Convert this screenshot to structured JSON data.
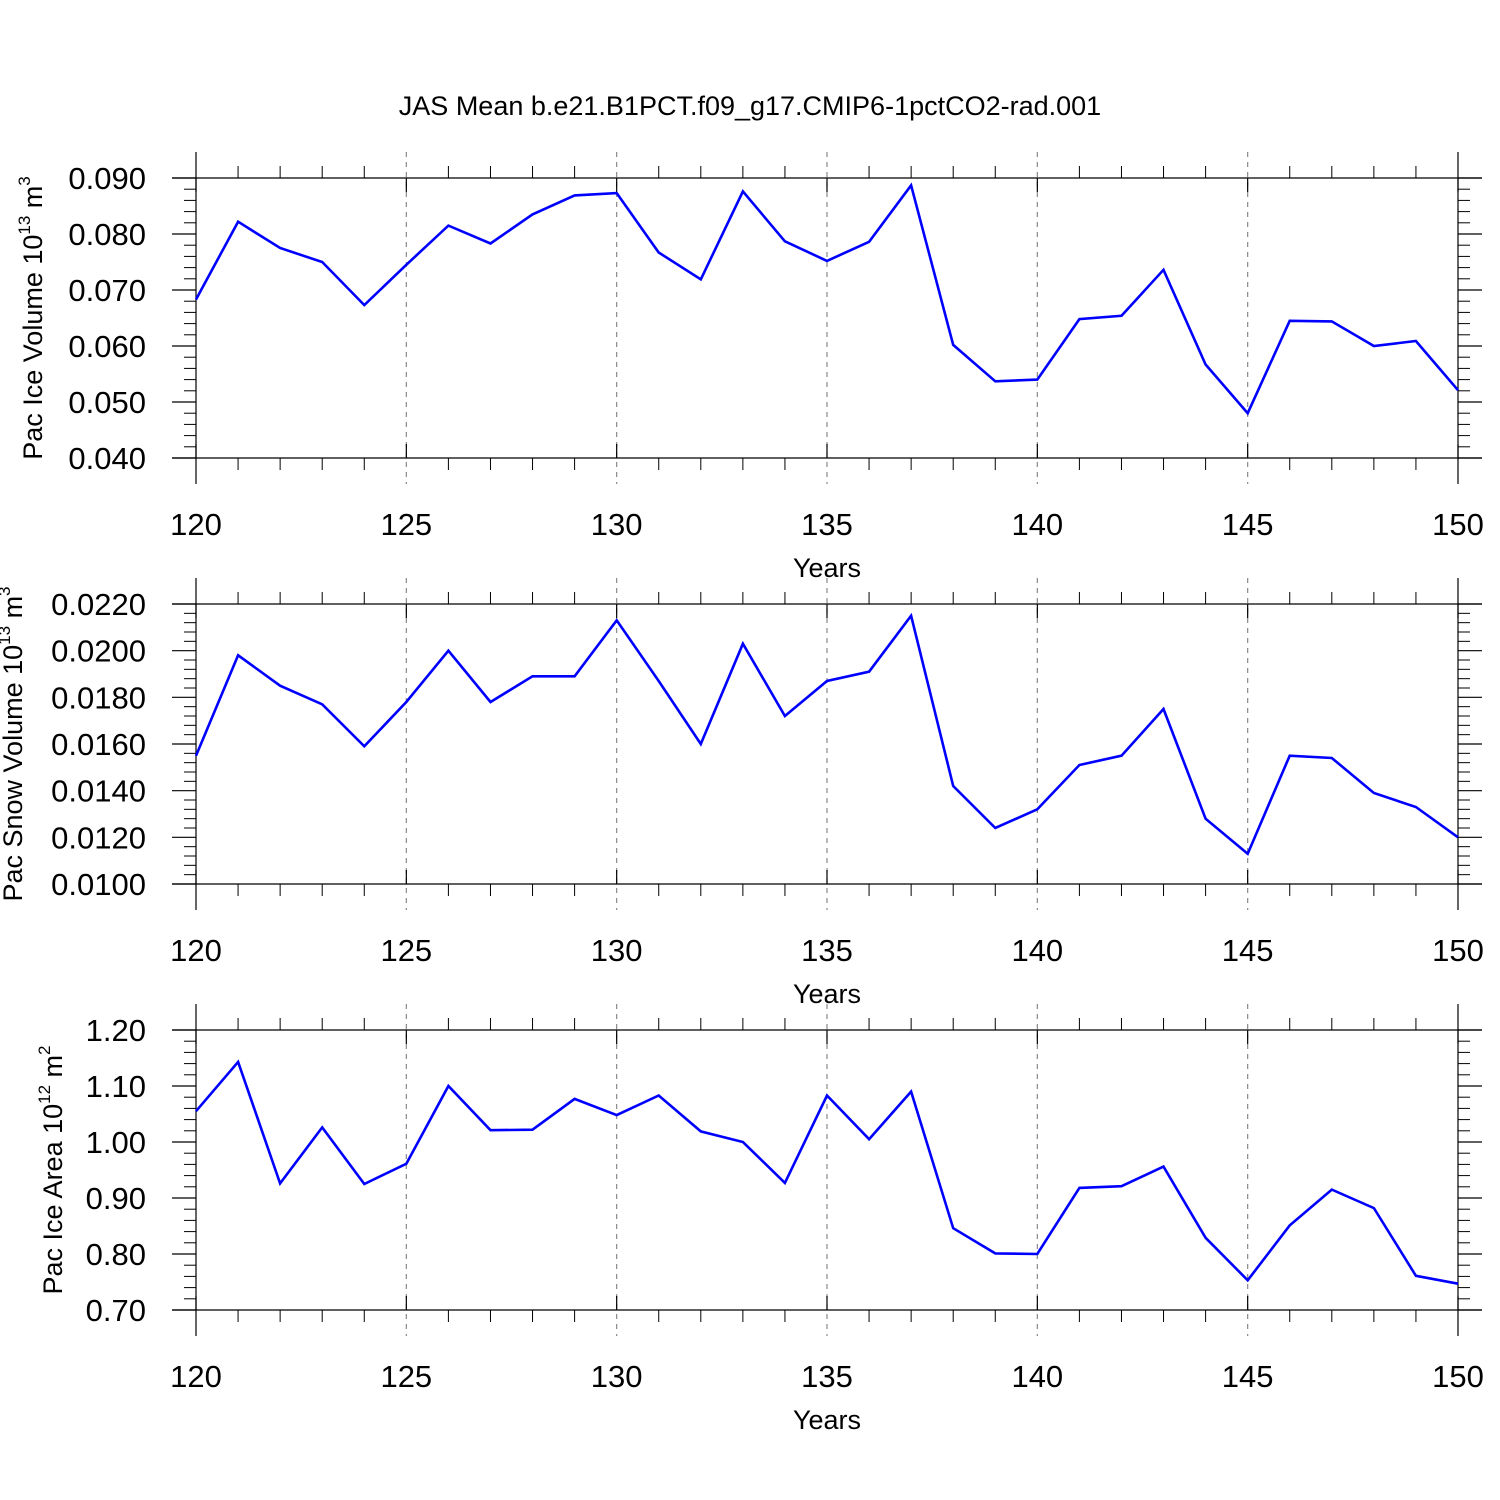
{
  "title": "JAS Mean b.e21.B1PCT.f09_g17.CMIP6-1pctCO2-rad.001",
  "colors": {
    "line": "#0000ff",
    "axis": "#000000",
    "grid": "#888888",
    "background": "#ffffff"
  },
  "chart_data": [
    {
      "type": "line",
      "ylabel": {
        "main": "Pac Ice Volume 10",
        "sup": "13",
        "unit": " m",
        "unit_sup": "3"
      },
      "xlabel": "Years",
      "xlim": [
        120,
        150
      ],
      "ylim": [
        0.04,
        0.09
      ],
      "xticks": [
        "120",
        "125",
        "130",
        "135",
        "140",
        "145",
        "150"
      ],
      "yticks": [
        "0.040",
        "0.050",
        "0.060",
        "0.070",
        "0.080",
        "0.090"
      ],
      "x": [
        120,
        121,
        122,
        123,
        124,
        125,
        126,
        127,
        128,
        129,
        130,
        131,
        132,
        133,
        134,
        135,
        136,
        137,
        138,
        139,
        140,
        141,
        142,
        143,
        144,
        145,
        146,
        147,
        148,
        149,
        150
      ],
      "series": [
        {
          "name": "Pac Ice Volume",
          "values": [
            0.0683,
            0.0822,
            0.0775,
            0.075,
            0.0673,
            0.0745,
            0.0815,
            0.0783,
            0.0835,
            0.0869,
            0.0873,
            0.0767,
            0.0719,
            0.0876,
            0.0787,
            0.0752,
            0.0786,
            0.0887,
            0.0602,
            0.0537,
            0.054,
            0.0648,
            0.0654,
            0.0736,
            0.0567,
            0.048,
            0.0645,
            0.0644,
            0.06,
            0.0609,
            0.0521
          ]
        }
      ]
    },
    {
      "type": "line",
      "ylabel": {
        "main": "Pac Snow Volume 10",
        "sup": "13",
        "unit": " m",
        "unit_sup": "3"
      },
      "xlabel": "Years",
      "xlim": [
        120,
        150
      ],
      "ylim": [
        0.01,
        0.022
      ],
      "xticks": [
        "120",
        "125",
        "130",
        "135",
        "140",
        "145",
        "150"
      ],
      "yticks": [
        "0.0100",
        "0.0120",
        "0.0140",
        "0.0160",
        "0.0180",
        "0.0200",
        "0.0220"
      ],
      "x": [
        120,
        121,
        122,
        123,
        124,
        125,
        126,
        127,
        128,
        129,
        130,
        131,
        132,
        133,
        134,
        135,
        136,
        137,
        138,
        139,
        140,
        141,
        142,
        143,
        144,
        145,
        146,
        147,
        148,
        149,
        150
      ],
      "series": [
        {
          "name": "Pac Snow Volume",
          "values": [
            0.0155,
            0.0198,
            0.0185,
            0.0177,
            0.0159,
            0.0178,
            0.02,
            0.0178,
            0.0189,
            0.0189,
            0.0213,
            0.0187,
            0.016,
            0.0203,
            0.0172,
            0.0187,
            0.0191,
            0.0215,
            0.0142,
            0.0124,
            0.0132,
            0.0151,
            0.0155,
            0.0175,
            0.0128,
            0.0113,
            0.0155,
            0.0154,
            0.0139,
            0.0133,
            0.012
          ]
        }
      ]
    },
    {
      "type": "line",
      "ylabel": {
        "main": "Pac Ice Area 10",
        "sup": "12",
        "unit": " m",
        "unit_sup": "2"
      },
      "xlabel": "Years",
      "xlim": [
        120,
        150
      ],
      "ylim": [
        0.7,
        1.2
      ],
      "xticks": [
        "120",
        "125",
        "130",
        "135",
        "140",
        "145",
        "150"
      ],
      "yticks": [
        "0.70",
        "0.80",
        "0.90",
        "1.00",
        "1.10",
        "1.20"
      ],
      "x": [
        120,
        121,
        122,
        123,
        124,
        125,
        126,
        127,
        128,
        129,
        130,
        131,
        132,
        133,
        134,
        135,
        136,
        137,
        138,
        139,
        140,
        141,
        142,
        143,
        144,
        145,
        146,
        147,
        148,
        149,
        150
      ],
      "series": [
        {
          "name": "Pac Ice Area",
          "values": [
            1.055,
            1.143,
            0.926,
            1.026,
            0.925,
            0.961,
            1.1,
            1.021,
            1.022,
            1.077,
            1.048,
            1.083,
            1.019,
            1.0,
            0.927,
            1.083,
            1.005,
            1.09,
            0.846,
            0.801,
            0.8,
            0.918,
            0.921,
            0.956,
            0.829,
            0.753,
            0.851,
            0.915,
            0.882,
            0.761,
            0.747
          ]
        }
      ]
    }
  ]
}
